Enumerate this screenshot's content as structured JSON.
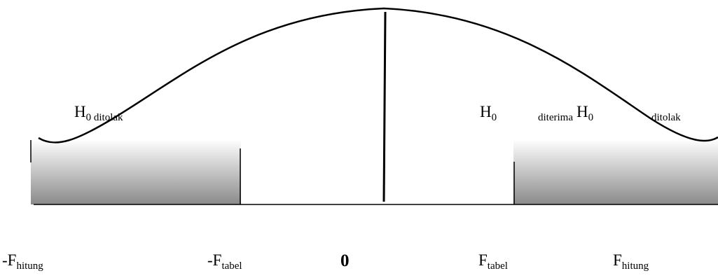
{
  "region_labels": {
    "left_reject": {
      "main": "H",
      "sub": "0 ditolak",
      "tail": ""
    },
    "accept": {
      "main": "H",
      "sub": "0",
      "tail": "diterima"
    },
    "right_reject": {
      "main": "H",
      "sub": "0",
      "tail": "ditolak"
    }
  },
  "axis_labels": {
    "neg_f_hitung": {
      "main": "-F",
      "sub": "hitung"
    },
    "neg_f_tabel": {
      "main": "-F",
      "sub": "tabel"
    },
    "zero": {
      "main": "0"
    },
    "f_tabel": {
      "main": "F",
      "sub": "tabel"
    },
    "f_hitung": {
      "main": "F",
      "sub": "hitung"
    }
  },
  "colors": {
    "curve": "#000000",
    "shade_top": "#ffffff",
    "shade_bottom": "#8a8a8a"
  }
}
